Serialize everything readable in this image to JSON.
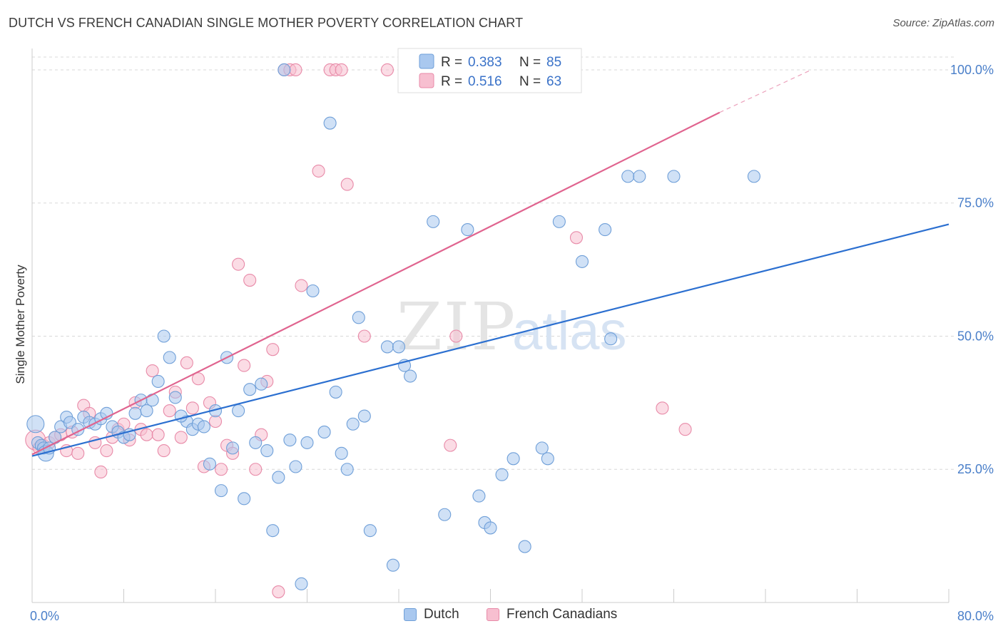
{
  "title": "DUTCH VS FRENCH CANADIAN SINGLE MOTHER POVERTY CORRELATION CHART",
  "source": "Source: ZipAtlas.com",
  "watermark": {
    "zip": "ZIP",
    "atlas": "atlas"
  },
  "legend": {
    "items": [
      {
        "r_label": "R =",
        "r_value": "0.383",
        "n_label": "N =",
        "n_value": "85"
      },
      {
        "r_label": "R =",
        "r_value": "0.516",
        "n_label": "N =",
        "n_value": "63"
      }
    ]
  },
  "bottom_legend": {
    "dutch": "Dutch",
    "french": "French Canadians"
  },
  "colors": {
    "dutch_fill": "#a9c8ef",
    "dutch_stroke": "#6f9fd8",
    "dutch_line": "#2b6fd0",
    "french_fill": "#f7bfd0",
    "french_stroke": "#e88aa8",
    "french_line": "#e0648f",
    "accent_text": "#3a72c8",
    "grid": "#d8d8d8"
  },
  "chart_data": {
    "type": "scatter",
    "title": "DUTCH VS FRENCH CANADIAN SINGLE MOTHER POVERTY CORRELATION CHART",
    "xlabel": "",
    "ylabel": "Single Mother Poverty",
    "xlim": [
      0,
      80
    ],
    "ylim": [
      0,
      100
    ],
    "x_tick_labels": [
      "0.0%",
      "80.0%"
    ],
    "y_tick_labels": [
      "25.0%",
      "50.0%",
      "75.0%",
      "100.0%"
    ],
    "y_ticks": [
      25,
      50,
      75,
      100
    ],
    "grid": true,
    "legend_position": "top-center",
    "series": [
      {
        "name": "Dutch",
        "r": 0.383,
        "n": 85,
        "trend": {
          "x0": 0,
          "y0": 27.5,
          "x1": 80,
          "y1": 71.0
        },
        "points": [
          [
            0.3,
            33.5
          ],
          [
            0.5,
            30.0
          ],
          [
            0.8,
            29.5
          ],
          [
            1.0,
            29.0
          ],
          [
            1.2,
            28.0
          ],
          [
            1.5,
            29.0
          ],
          [
            2.0,
            31.0
          ],
          [
            2.5,
            33.0
          ],
          [
            3.0,
            34.8
          ],
          [
            3.3,
            33.8
          ],
          [
            4.0,
            32.5
          ],
          [
            4.5,
            34.8
          ],
          [
            5.0,
            33.8
          ],
          [
            5.5,
            33.5
          ],
          [
            6.0,
            34.5
          ],
          [
            6.5,
            35.5
          ],
          [
            7.0,
            33.0
          ],
          [
            7.5,
            32.0
          ],
          [
            8.0,
            31.0
          ],
          [
            8.5,
            31.5
          ],
          [
            9.0,
            35.5
          ],
          [
            9.5,
            38.0
          ],
          [
            10.0,
            36.0
          ],
          [
            10.5,
            38.0
          ],
          [
            11.0,
            41.5
          ],
          [
            11.5,
            50.0
          ],
          [
            12.0,
            46.0
          ],
          [
            12.5,
            38.5
          ],
          [
            13.5,
            34.0
          ],
          [
            14.0,
            32.5
          ],
          [
            14.5,
            33.5
          ],
          [
            15.0,
            33.0
          ],
          [
            15.5,
            26.0
          ],
          [
            16.0,
            36.0
          ],
          [
            16.5,
            21.0
          ],
          [
            17.0,
            46.0
          ],
          [
            17.5,
            29.0
          ],
          [
            18.0,
            36.0
          ],
          [
            18.5,
            19.5
          ],
          [
            19.0,
            40.0
          ],
          [
            19.5,
            30.0
          ],
          [
            20.0,
            41.0
          ],
          [
            20.5,
            28.5
          ],
          [
            21.0,
            13.5
          ],
          [
            21.5,
            23.5
          ],
          [
            22.0,
            100.0
          ],
          [
            22.5,
            30.5
          ],
          [
            23.0,
            25.5
          ],
          [
            23.5,
            3.5
          ],
          [
            24.0,
            30.0
          ],
          [
            24.5,
            58.5
          ],
          [
            25.5,
            32.0
          ],
          [
            26.0,
            90.0
          ],
          [
            26.5,
            39.5
          ],
          [
            27.0,
            28.0
          ],
          [
            27.5,
            25.0
          ],
          [
            28.0,
            33.5
          ],
          [
            28.5,
            53.5
          ],
          [
            29.0,
            35.0
          ],
          [
            29.5,
            13.5
          ],
          [
            31.0,
            48.0
          ],
          [
            31.5,
            7.0
          ],
          [
            32.0,
            48.0
          ],
          [
            32.5,
            44.5
          ],
          [
            33.0,
            42.5
          ],
          [
            35.0,
            71.5
          ],
          [
            36.0,
            16.5
          ],
          [
            38.0,
            70.0
          ],
          [
            39.0,
            20.0
          ],
          [
            39.5,
            15.0
          ],
          [
            40.0,
            14.0
          ],
          [
            41.0,
            24.0
          ],
          [
            42.0,
            27.0
          ],
          [
            43.0,
            10.5
          ],
          [
            44.5,
            29.0
          ],
          [
            45.0,
            27.0
          ],
          [
            46.0,
            71.5
          ],
          [
            48.0,
            64.0
          ],
          [
            50.0,
            70.0
          ],
          [
            50.5,
            49.5
          ],
          [
            52.0,
            80.0
          ],
          [
            53.0,
            80.0
          ],
          [
            56.0,
            80.0
          ],
          [
            63.0,
            80.0
          ],
          [
            13.0,
            35.0
          ]
        ]
      },
      {
        "name": "French Canadians",
        "r": 0.516,
        "n": 63,
        "trend": {
          "x0": 0,
          "y0": 27.8,
          "x1": 60,
          "y1": 92.0,
          "dash_to_x": 68,
          "dash_to_y": 100.0
        },
        "points": [
          [
            0.3,
            30.5
          ],
          [
            0.6,
            29.0
          ],
          [
            1.0,
            29.5
          ],
          [
            1.5,
            30.0
          ],
          [
            2.0,
            31.0
          ],
          [
            2.5,
            31.5
          ],
          [
            3.0,
            28.5
          ],
          [
            3.5,
            32.0
          ],
          [
            4.0,
            28.0
          ],
          [
            4.5,
            37.0
          ],
          [
            5.0,
            35.5
          ],
          [
            5.5,
            30.0
          ],
          [
            6.0,
            24.5
          ],
          [
            6.5,
            28.5
          ],
          [
            7.0,
            31.0
          ],
          [
            7.5,
            32.5
          ],
          [
            8.0,
            33.5
          ],
          [
            8.5,
            30.5
          ],
          [
            9.0,
            37.5
          ],
          [
            9.5,
            32.5
          ],
          [
            10.0,
            31.5
          ],
          [
            10.5,
            43.5
          ],
          [
            11.0,
            31.5
          ],
          [
            11.5,
            28.5
          ],
          [
            12.0,
            36.0
          ],
          [
            12.5,
            39.5
          ],
          [
            13.0,
            31.0
          ],
          [
            13.5,
            45.0
          ],
          [
            14.0,
            36.5
          ],
          [
            14.5,
            42.0
          ],
          [
            15.0,
            25.5
          ],
          [
            15.5,
            37.5
          ],
          [
            16.0,
            34.0
          ],
          [
            16.5,
            25.0
          ],
          [
            17.0,
            29.5
          ],
          [
            17.5,
            28.0
          ],
          [
            18.0,
            63.5
          ],
          [
            18.5,
            44.5
          ],
          [
            19.0,
            60.5
          ],
          [
            19.5,
            25.0
          ],
          [
            20.0,
            31.5
          ],
          [
            20.5,
            41.5
          ],
          [
            21.0,
            47.5
          ],
          [
            21.5,
            2.0
          ],
          [
            22.0,
            100.0
          ],
          [
            22.5,
            100.0
          ],
          [
            23.0,
            100.0
          ],
          [
            23.5,
            59.5
          ],
          [
            25.0,
            81.0
          ],
          [
            26.0,
            100.0
          ],
          [
            26.5,
            100.0
          ],
          [
            27.5,
            78.5
          ],
          [
            29.0,
            50.0
          ],
          [
            31.0,
            100.0
          ],
          [
            35.0,
            100.0
          ],
          [
            36.0,
            100.0
          ],
          [
            36.5,
            29.5
          ],
          [
            37.0,
            50.0
          ],
          [
            47.5,
            68.5
          ],
          [
            55.0,
            36.5
          ],
          [
            57.0,
            32.5
          ],
          [
            34.5,
            100.0
          ],
          [
            27.0,
            100.0
          ]
        ]
      }
    ]
  }
}
